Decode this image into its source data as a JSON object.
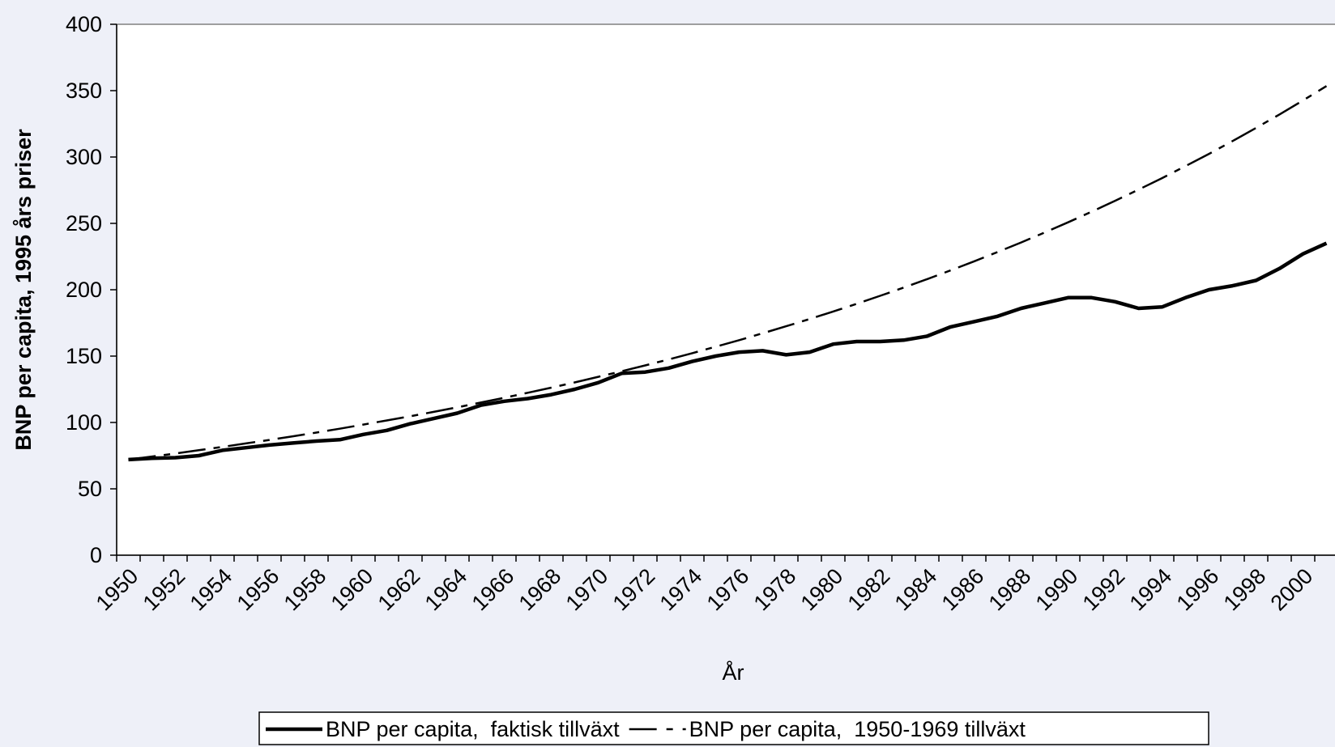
{
  "chart_data": {
    "type": "line",
    "x_label": "År",
    "y_label": "BNP per capita, 1995 års priser",
    "categories": [
      "1950",
      null,
      "1952",
      null,
      "1954",
      null,
      "1956",
      null,
      "1958",
      null,
      "1960",
      null,
      "1962",
      null,
      "1964",
      null,
      "1966",
      null,
      "1968",
      null,
      "1970",
      null,
      "1972",
      null,
      "1974",
      null,
      "1976",
      null,
      "1978",
      null,
      "1980",
      null,
      "1982",
      null,
      "1984",
      null,
      "1986",
      null,
      "1988",
      null,
      "1990",
      null,
      "1992",
      null,
      "1994",
      null,
      "1996",
      null,
      "1998",
      null,
      "2000",
      null
    ],
    "series": [
      {
        "name": "BNP per capita,  faktisk tillväxt",
        "color": "#000000",
        "style": "solid",
        "values": [
          72,
          73,
          73.5,
          75,
          79,
          81,
          83,
          84.5,
          86,
          87,
          91,
          94,
          99,
          103,
          107,
          113,
          116,
          118,
          121,
          125,
          130,
          137,
          138,
          141,
          146,
          150,
          153,
          154,
          151,
          153,
          159,
          161,
          161,
          162,
          165,
          172,
          176,
          180,
          186,
          190,
          194,
          194,
          191,
          186,
          187,
          194,
          200,
          203,
          207,
          216,
          227,
          235
        ]
      },
      {
        "name": "BNP per capita,  1950-1969 tillväxt",
        "color": "#000000",
        "style": "dashed",
        "values": [
          72.0,
          74.3,
          76.6,
          79.1,
          81.6,
          84.2,
          86.8,
          89.6,
          92.4,
          95.3,
          98.4,
          101.5,
          104.7,
          108.0,
          111.4,
          115.0,
          118.6,
          122.4,
          126.2,
          130.2,
          134.4,
          138.6,
          143.0,
          147.5,
          152.2,
          157.1,
          162.0,
          167.2,
          172.5,
          177.9,
          183.6,
          189.4,
          195.4,
          201.6,
          208.0,
          214.6,
          221.4,
          228.4,
          235.6,
          243.1,
          250.8,
          258.8,
          267.0,
          275.4,
          284.1,
          293.2,
          302.4,
          312.0,
          321.9,
          332.1,
          342.6,
          353.5
        ]
      }
    ],
    "ylim": [
      0,
      400
    ],
    "yticks": [
      0,
      50,
      100,
      150,
      200,
      250,
      300,
      350,
      400
    ],
    "grid": false,
    "legend": "bottom"
  }
}
